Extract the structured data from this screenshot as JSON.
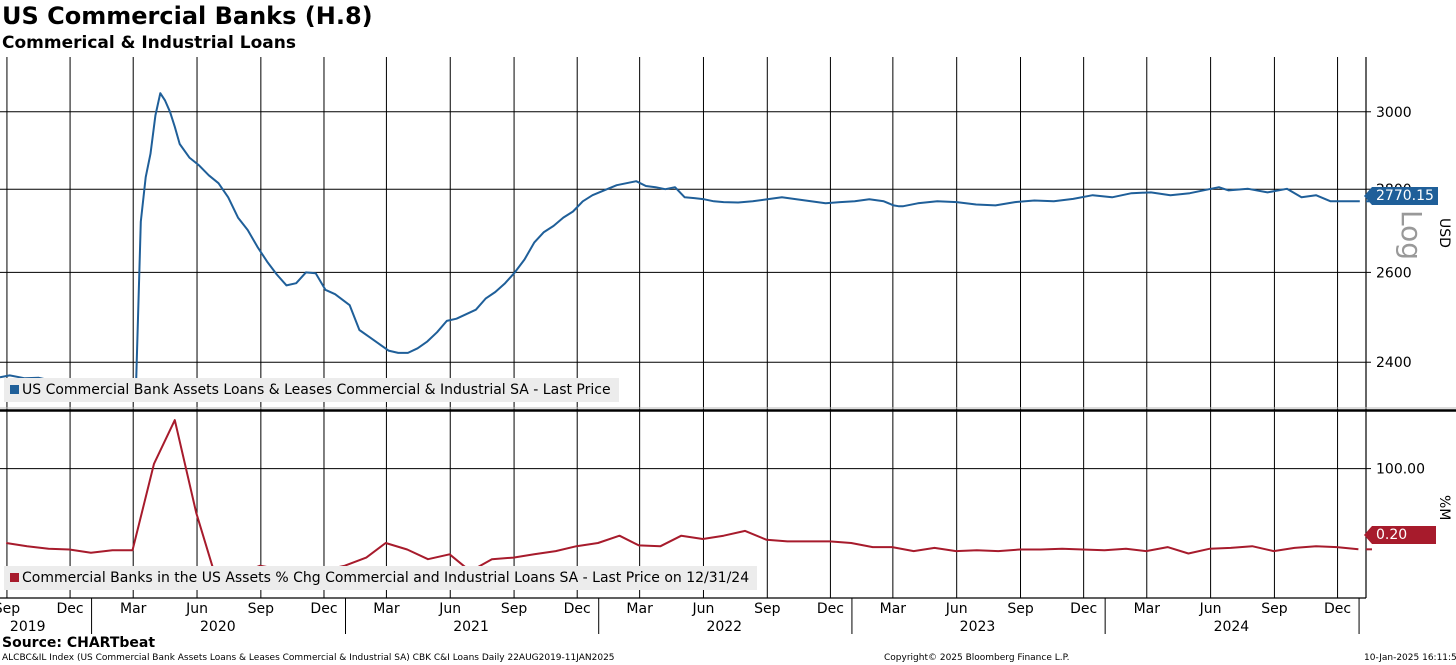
{
  "header": {
    "title": "US Commercial Banks (H.8)",
    "subtitle": "Commerical & Industrial Loans",
    "source": "Source: CHARTbeat",
    "footer_left": "ALCBC&IL Index (US Commercial Bank Assets Loans & Leases Commercial & Industrial SA) CBK C&I Loans  Daily 22AUG2019-11JAN2025",
    "footer_mid": "Copyright© 2025 Bloomberg Finance L.P.",
    "footer_right": "10-Jan-2025 16:11:51"
  },
  "chart_data": [
    {
      "type": "line",
      "scale": "log",
      "ylim": [
        2300,
        3150
      ],
      "yticks": [
        2400,
        2600,
        2800,
        3000
      ],
      "ylabel": "USD",
      "scale_label": "Log",
      "color": "#1f5f99",
      "last_value_label": "2770.15",
      "legend": "US Commercial Bank Assets Loans & Leases Commercial & Industrial SA - Last Price",
      "series": {
        "x": [
          "2019-08-22",
          "2019-09-05",
          "2019-09-26",
          "2019-10-17",
          "2019-11-07",
          "2019-11-28",
          "2019-12-19",
          "2020-01-09",
          "2020-01-30",
          "2020-02-20",
          "2020-03-05",
          "2020-03-12",
          "2020-03-19",
          "2020-03-26",
          "2020-04-02",
          "2020-04-09",
          "2020-04-16",
          "2020-04-23",
          "2020-04-30",
          "2020-05-07",
          "2020-05-21",
          "2020-06-04",
          "2020-06-18",
          "2020-07-02",
          "2020-07-16",
          "2020-07-30",
          "2020-08-13",
          "2020-08-27",
          "2020-09-10",
          "2020-09-24",
          "2020-10-08",
          "2020-10-22",
          "2020-11-05",
          "2020-11-19",
          "2020-12-03",
          "2020-12-17",
          "2021-01-07",
          "2021-01-21",
          "2021-02-04",
          "2021-02-18",
          "2021-03-04",
          "2021-03-18",
          "2021-04-01",
          "2021-04-15",
          "2021-04-29",
          "2021-05-13",
          "2021-05-27",
          "2021-06-10",
          "2021-06-24",
          "2021-07-08",
          "2021-07-22",
          "2021-08-05",
          "2021-08-19",
          "2021-09-02",
          "2021-09-16",
          "2021-09-30",
          "2021-10-14",
          "2021-10-28",
          "2021-11-11",
          "2021-11-25",
          "2021-12-09",
          "2021-12-23",
          "2022-01-13",
          "2022-01-27",
          "2022-02-10",
          "2022-02-24",
          "2022-03-10",
          "2022-03-24",
          "2022-04-07",
          "2022-04-21",
          "2022-05-05",
          "2022-05-19",
          "2022-06-02",
          "2022-06-16",
          "2022-06-30",
          "2022-07-21",
          "2022-08-11",
          "2022-09-01",
          "2022-09-22",
          "2022-10-13",
          "2022-11-03",
          "2022-11-24",
          "2022-12-15",
          "2023-01-05",
          "2023-01-26",
          "2023-02-16",
          "2023-03-02",
          "2023-03-09",
          "2023-03-16",
          "2023-04-06",
          "2023-05-04",
          "2023-06-01",
          "2023-06-29",
          "2023-07-27",
          "2023-08-24",
          "2023-09-21",
          "2023-10-19",
          "2023-11-16",
          "2023-12-14",
          "2024-01-11",
          "2024-02-08",
          "2024-03-07",
          "2024-04-04",
          "2024-05-02",
          "2024-05-30",
          "2024-06-13",
          "2024-06-27",
          "2024-07-25",
          "2024-08-22",
          "2024-09-19",
          "2024-10-10",
          "2024-10-31",
          "2024-11-21",
          "2024-12-05",
          "2024-12-19",
          "2025-01-02"
        ],
        "y": [
          2368,
          2372,
          2366,
          2367,
          2360,
          2352,
          2351,
          2348,
          2346,
          2347,
          2348,
          2720,
          2830,
          2890,
          2990,
          3050,
          3030,
          3000,
          2960,
          2915,
          2880,
          2860,
          2835,
          2815,
          2780,
          2730,
          2700,
          2660,
          2625,
          2595,
          2570,
          2575,
          2600,
          2598,
          2560,
          2550,
          2525,
          2470,
          2455,
          2440,
          2425,
          2420,
          2420,
          2430,
          2445,
          2465,
          2490,
          2495,
          2505,
          2515,
          2540,
          2555,
          2575,
          2600,
          2630,
          2670,
          2695,
          2710,
          2730,
          2745,
          2770,
          2785,
          2800,
          2810,
          2815,
          2820,
          2808,
          2805,
          2800,
          2805,
          2780,
          2778,
          2775,
          2770,
          2768,
          2767,
          2770,
          2775,
          2780,
          2775,
          2770,
          2765,
          2768,
          2770,
          2775,
          2770,
          2760,
          2758,
          2758,
          2765,
          2770,
          2768,
          2762,
          2760,
          2768,
          2772,
          2770,
          2776,
          2785,
          2780,
          2790,
          2792,
          2785,
          2790,
          2800,
          2805,
          2797,
          2801,
          2792,
          2801,
          2780,
          2785,
          2770,
          2770,
          2770,
          2770
        ]
      }
    },
    {
      "type": "line",
      "ylim": [
        -60,
        170
      ],
      "yticks": [
        100
      ],
      "ytick_labels": [
        "100.00"
      ],
      "ylabel": "%M",
      "color": "#a71b2c",
      "last_value_label": "0.20",
      "legend": "Commercial Banks in the US Assets % Chg Commercial and Industrial Loans SA - Last Price on 12/31/24",
      "series": {
        "x": [
          "2019-08-31",
          "2019-09-30",
          "2019-10-31",
          "2019-11-30",
          "2019-12-31",
          "2020-01-31",
          "2020-02-29",
          "2020-03-31",
          "2020-04-30",
          "2020-05-31",
          "2020-06-30",
          "2020-07-31",
          "2020-08-31",
          "2020-09-30",
          "2020-10-31",
          "2020-11-30",
          "2020-12-31",
          "2021-01-31",
          "2021-02-28",
          "2021-03-31",
          "2021-04-30",
          "2021-05-31",
          "2021-06-30",
          "2021-07-31",
          "2021-08-31",
          "2021-09-30",
          "2021-10-31",
          "2021-11-30",
          "2021-12-31",
          "2022-01-31",
          "2022-02-28",
          "2022-03-31",
          "2022-04-30",
          "2022-05-31",
          "2022-06-30",
          "2022-07-31",
          "2022-08-31",
          "2022-09-30",
          "2022-10-31",
          "2022-11-30",
          "2022-12-31",
          "2023-01-31",
          "2023-02-28",
          "2023-03-31",
          "2023-04-30",
          "2023-05-31",
          "2023-06-30",
          "2023-07-31",
          "2023-08-31",
          "2023-09-30",
          "2023-10-31",
          "2023-11-30",
          "2023-12-31",
          "2024-01-31",
          "2024-02-29",
          "2024-03-31",
          "2024-04-30",
          "2024-05-31",
          "2024-06-30",
          "2024-07-31",
          "2024-08-31",
          "2024-09-30",
          "2024-10-31",
          "2024-11-30",
          "2024-12-31"
        ],
        "y": [
          8,
          4,
          1,
          0,
          -4,
          -1,
          -1,
          106,
          160,
          45,
          -40,
          -30,
          -20,
          -25,
          -28,
          -26,
          -20,
          -10,
          8,
          0,
          -12,
          -6,
          -27,
          -12,
          -10,
          -6,
          -2,
          4,
          8,
          17,
          5,
          4,
          17,
          13,
          17,
          23,
          12,
          10,
          10,
          10,
          8,
          3,
          3,
          -2,
          2,
          -2,
          -1,
          -2,
          0,
          0,
          1,
          0,
          -1,
          1,
          -2,
          3,
          -5,
          1,
          2,
          4,
          -2,
          2,
          4,
          3,
          0.2
        ]
      }
    }
  ],
  "x_axis": {
    "months": [
      {
        "label": "Sep",
        "date": "2019-09-01"
      },
      {
        "label": "Dec",
        "date": "2019-12-01"
      },
      {
        "label": "Mar",
        "date": "2020-03-01"
      },
      {
        "label": "Jun",
        "date": "2020-06-01"
      },
      {
        "label": "Sep",
        "date": "2020-09-01"
      },
      {
        "label": "Dec",
        "date": "2020-12-01"
      },
      {
        "label": "Mar",
        "date": "2021-03-01"
      },
      {
        "label": "Jun",
        "date": "2021-06-01"
      },
      {
        "label": "Sep",
        "date": "2021-09-01"
      },
      {
        "label": "Dec",
        "date": "2021-12-01"
      },
      {
        "label": "Mar",
        "date": "2022-03-01"
      },
      {
        "label": "Jun",
        "date": "2022-06-01"
      },
      {
        "label": "Sep",
        "date": "2022-09-01"
      },
      {
        "label": "Dec",
        "date": "2022-12-01"
      },
      {
        "label": "Mar",
        "date": "2023-03-01"
      },
      {
        "label": "Jun",
        "date": "2023-06-01"
      },
      {
        "label": "Sep",
        "date": "2023-09-01"
      },
      {
        "label": "Dec",
        "date": "2023-12-01"
      },
      {
        "label": "Mar",
        "date": "2024-03-01"
      },
      {
        "label": "Jun",
        "date": "2024-06-01"
      },
      {
        "label": "Sep",
        "date": "2024-09-01"
      },
      {
        "label": "Dec",
        "date": "2024-12-01"
      }
    ],
    "years": [
      {
        "label": "2019",
        "date": "2019-10-01"
      },
      {
        "label": "2020",
        "date": "2020-07-01"
      },
      {
        "label": "2021",
        "date": "2021-07-01"
      },
      {
        "label": "2022",
        "date": "2022-07-01"
      },
      {
        "label": "2023",
        "date": "2023-07-01"
      },
      {
        "label": "2024",
        "date": "2024-07-01"
      }
    ],
    "year_boundaries": [
      "2020-01-01",
      "2021-01-01",
      "2022-01-01",
      "2023-01-01",
      "2024-01-01",
      "2025-01-01"
    ]
  }
}
